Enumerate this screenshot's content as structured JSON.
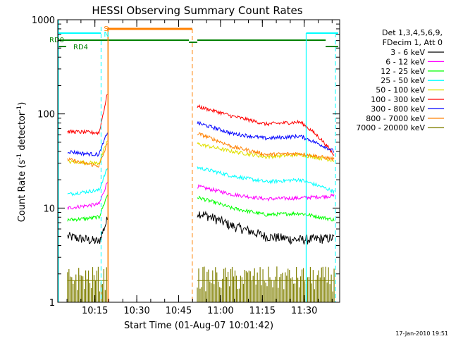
{
  "chart_data": {
    "type": "line",
    "title": "HESSI Observing Summary Count Rates",
    "xlabel": "Start Time (01-Aug-07 10:01:42)",
    "ylabel_main": "Count Rate (s",
    "ylabel_sup1": "-1",
    "ylabel_mid": " detector",
    "ylabel_sup2": "-1",
    "ylabel_end": ")",
    "y_scale": "log",
    "ylim": [
      1,
      1000
    ],
    "xlim_minutes": [
      0,
      101
    ],
    "x_ticks": [
      {
        "label": "10:15",
        "minutes": 13.3
      },
      {
        "label": "10:30",
        "minutes": 28.3
      },
      {
        "label": "10:45",
        "minutes": 43.3
      },
      {
        "label": "11:00",
        "minutes": 58.3
      },
      {
        "label": "11:15",
        "minutes": 73.3
      },
      {
        "label": "11:30",
        "minutes": 88.3
      }
    ],
    "y_ticks": [
      {
        "label": "1",
        "value": 1
      },
      {
        "label": "10",
        "value": 10
      },
      {
        "label": "100",
        "value": 100
      },
      {
        "label": "1000",
        "value": 1000
      }
    ],
    "legend": {
      "placement": "right",
      "header1": "Det 1,3,4,5,6,9,",
      "header2": "FDecim 1, Att 0"
    },
    "gap_minutes": [
      18,
      50
    ],
    "series": [
      {
        "name": "3 - 6 keV",
        "color": "#000000",
        "pre": [
          5.0,
          4.7,
          4.4
        ],
        "post": [
          9.0,
          6.5,
          5.0,
          4.6,
          4.8
        ]
      },
      {
        "name": "6 - 12 keV",
        "color": "#ff00ff",
        "pre": [
          10.0,
          10.5,
          11.0
        ],
        "post": [
          17.0,
          14.0,
          12.5,
          12.8,
          13.5
        ]
      },
      {
        "name": "12 - 25 keV",
        "color": "#00ff00",
        "pre": [
          7.5,
          7.7,
          8.0
        ],
        "post": [
          13.0,
          10.0,
          8.5,
          8.8,
          7.5
        ]
      },
      {
        "name": "25 - 50 keV",
        "color": "#00ffff",
        "pre": [
          14.0,
          14.8,
          15.5
        ],
        "post": [
          27.0,
          22.0,
          19.0,
          20.0,
          15.0
        ]
      },
      {
        "name": "50 - 100 keV",
        "color": "#e0e000",
        "pre": [
          31.0,
          30.5,
          30.0
        ],
        "post": [
          48.0,
          40.0,
          35.0,
          37.0,
          32.0
        ]
      },
      {
        "name": "100 - 300 keV",
        "color": "#ff0000",
        "pre": [
          65.0,
          64.0,
          63.0
        ],
        "post": [
          120.0,
          95.0,
          78.0,
          82.0,
          36.0
        ]
      },
      {
        "name": "300 - 800 keV",
        "color": "#0000ff",
        "pre": [
          40.0,
          38.0,
          37.0
        ],
        "post": [
          80.0,
          62.0,
          55.0,
          58.0,
          40.0
        ]
      },
      {
        "name": "800 - 7000 keV",
        "color": "#ff8000",
        "pre": [
          33.0,
          30.0,
          28.0
        ],
        "post": [
          62.0,
          45.0,
          37.0,
          38.0,
          33.0
        ]
      },
      {
        "name": "7000 - 20000 keV",
        "color": "#808000",
        "pre": [
          1.7,
          1.7,
          1.7
        ],
        "post": [
          1.7,
          1.7,
          1.7,
          1.7,
          1.7
        ]
      }
    ],
    "flag_labels": {
      "s": "S",
      "n": "N",
      "rd0": "RD0",
      "rd4": "RD4"
    }
  },
  "footer_timestamp": "17-Jan-2010 19:51"
}
